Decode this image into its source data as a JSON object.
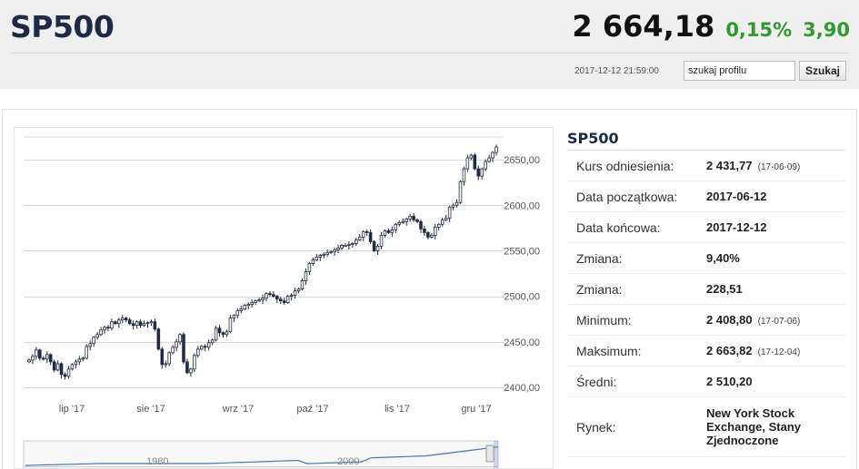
{
  "header": {
    "symbol": "SP500",
    "price": "2 664,18",
    "change_pct": "0,15%",
    "change_abs": "3,90",
    "timestamp": "2017-12-12 21:59:00",
    "search_value": "szukaj profilu",
    "search_button": "Szukaj"
  },
  "info": {
    "title": "SP500",
    "rows": [
      {
        "label": "Kurs odniesienia:",
        "value": "2 431,77",
        "date": "(17-06-09)"
      },
      {
        "label": "Data początkowa:",
        "value": "2017-06-12",
        "date": ""
      },
      {
        "label": "Data końcowa:",
        "value": "2017-12-12",
        "date": ""
      },
      {
        "label": "Zmiana:",
        "value": "9,40%",
        "date": ""
      },
      {
        "label": "Zmiana:",
        "value": "228,51",
        "date": ""
      },
      {
        "label": "Minimum:",
        "value": "2 408,80",
        "date": "(17-07-06)"
      },
      {
        "label": "Maksimum:",
        "value": "2 663,82",
        "date": "(17-12-04)"
      },
      {
        "label": "Średni:",
        "value": "2 510,20",
        "date": ""
      },
      {
        "label": "Rynek:",
        "value": "New York Stock Exchange, Stany Zjednoczone",
        "date": ""
      }
    ]
  },
  "chart_data": {
    "type": "candlestick",
    "y_ticks": [
      "2400,00",
      "2450,00",
      "2500,00",
      "2550,00",
      "2600,00",
      "2650,00"
    ],
    "y_tick_values": [
      2400,
      2450,
      2500,
      2550,
      2600,
      2650
    ],
    "x_ticks": [
      "lip '17",
      "sie '17",
      "wrz '17",
      "paź '17",
      "lis '17",
      "gru '17"
    ],
    "ylim": [
      2390,
      2675
    ],
    "navigator_labels": [
      "1980",
      "2000"
    ],
    "colors": {
      "up": "#ffffff",
      "down": "#1f2a44",
      "grid": "#d8d8d8",
      "navigator": "#4a78b5"
    },
    "closes": [
      2430,
      2434,
      2441,
      2432,
      2431,
      2436,
      2428,
      2419,
      2426,
      2414,
      2412,
      2420,
      2425,
      2428,
      2431,
      2432,
      2445,
      2448,
      2455,
      2458,
      2463,
      2466,
      2465,
      2472,
      2470,
      2474,
      2476,
      2474,
      2470,
      2468,
      2472,
      2468,
      2470,
      2471,
      2472,
      2464,
      2442,
      2425,
      2426,
      2438,
      2444,
      2450,
      2458,
      2428,
      2416,
      2420,
      2435,
      2442,
      2445,
      2444,
      2449,
      2452,
      2465,
      2460,
      2458,
      2461,
      2476,
      2479,
      2484,
      2486,
      2490,
      2491,
      2493,
      2495,
      2496,
      2498,
      2503,
      2502,
      2500,
      2497,
      2495,
      2493,
      2500,
      2501,
      2506,
      2508,
      2517,
      2527,
      2536,
      2540,
      2543,
      2545,
      2546,
      2548,
      2549,
      2551,
      2553,
      2556,
      2556,
      2557,
      2558,
      2562,
      2565,
      2571,
      2570,
      2560,
      2550,
      2555,
      2567,
      2572,
      2570,
      2573,
      2579,
      2581,
      2582,
      2585,
      2588,
      2584,
      2582,
      2574,
      2570,
      2565,
      2567,
      2576,
      2579,
      2584,
      2586,
      2598,
      2600,
      2603,
      2626,
      2640,
      2652,
      2655,
      2640,
      2632,
      2640,
      2648,
      2652,
      2658,
      2664
    ]
  }
}
